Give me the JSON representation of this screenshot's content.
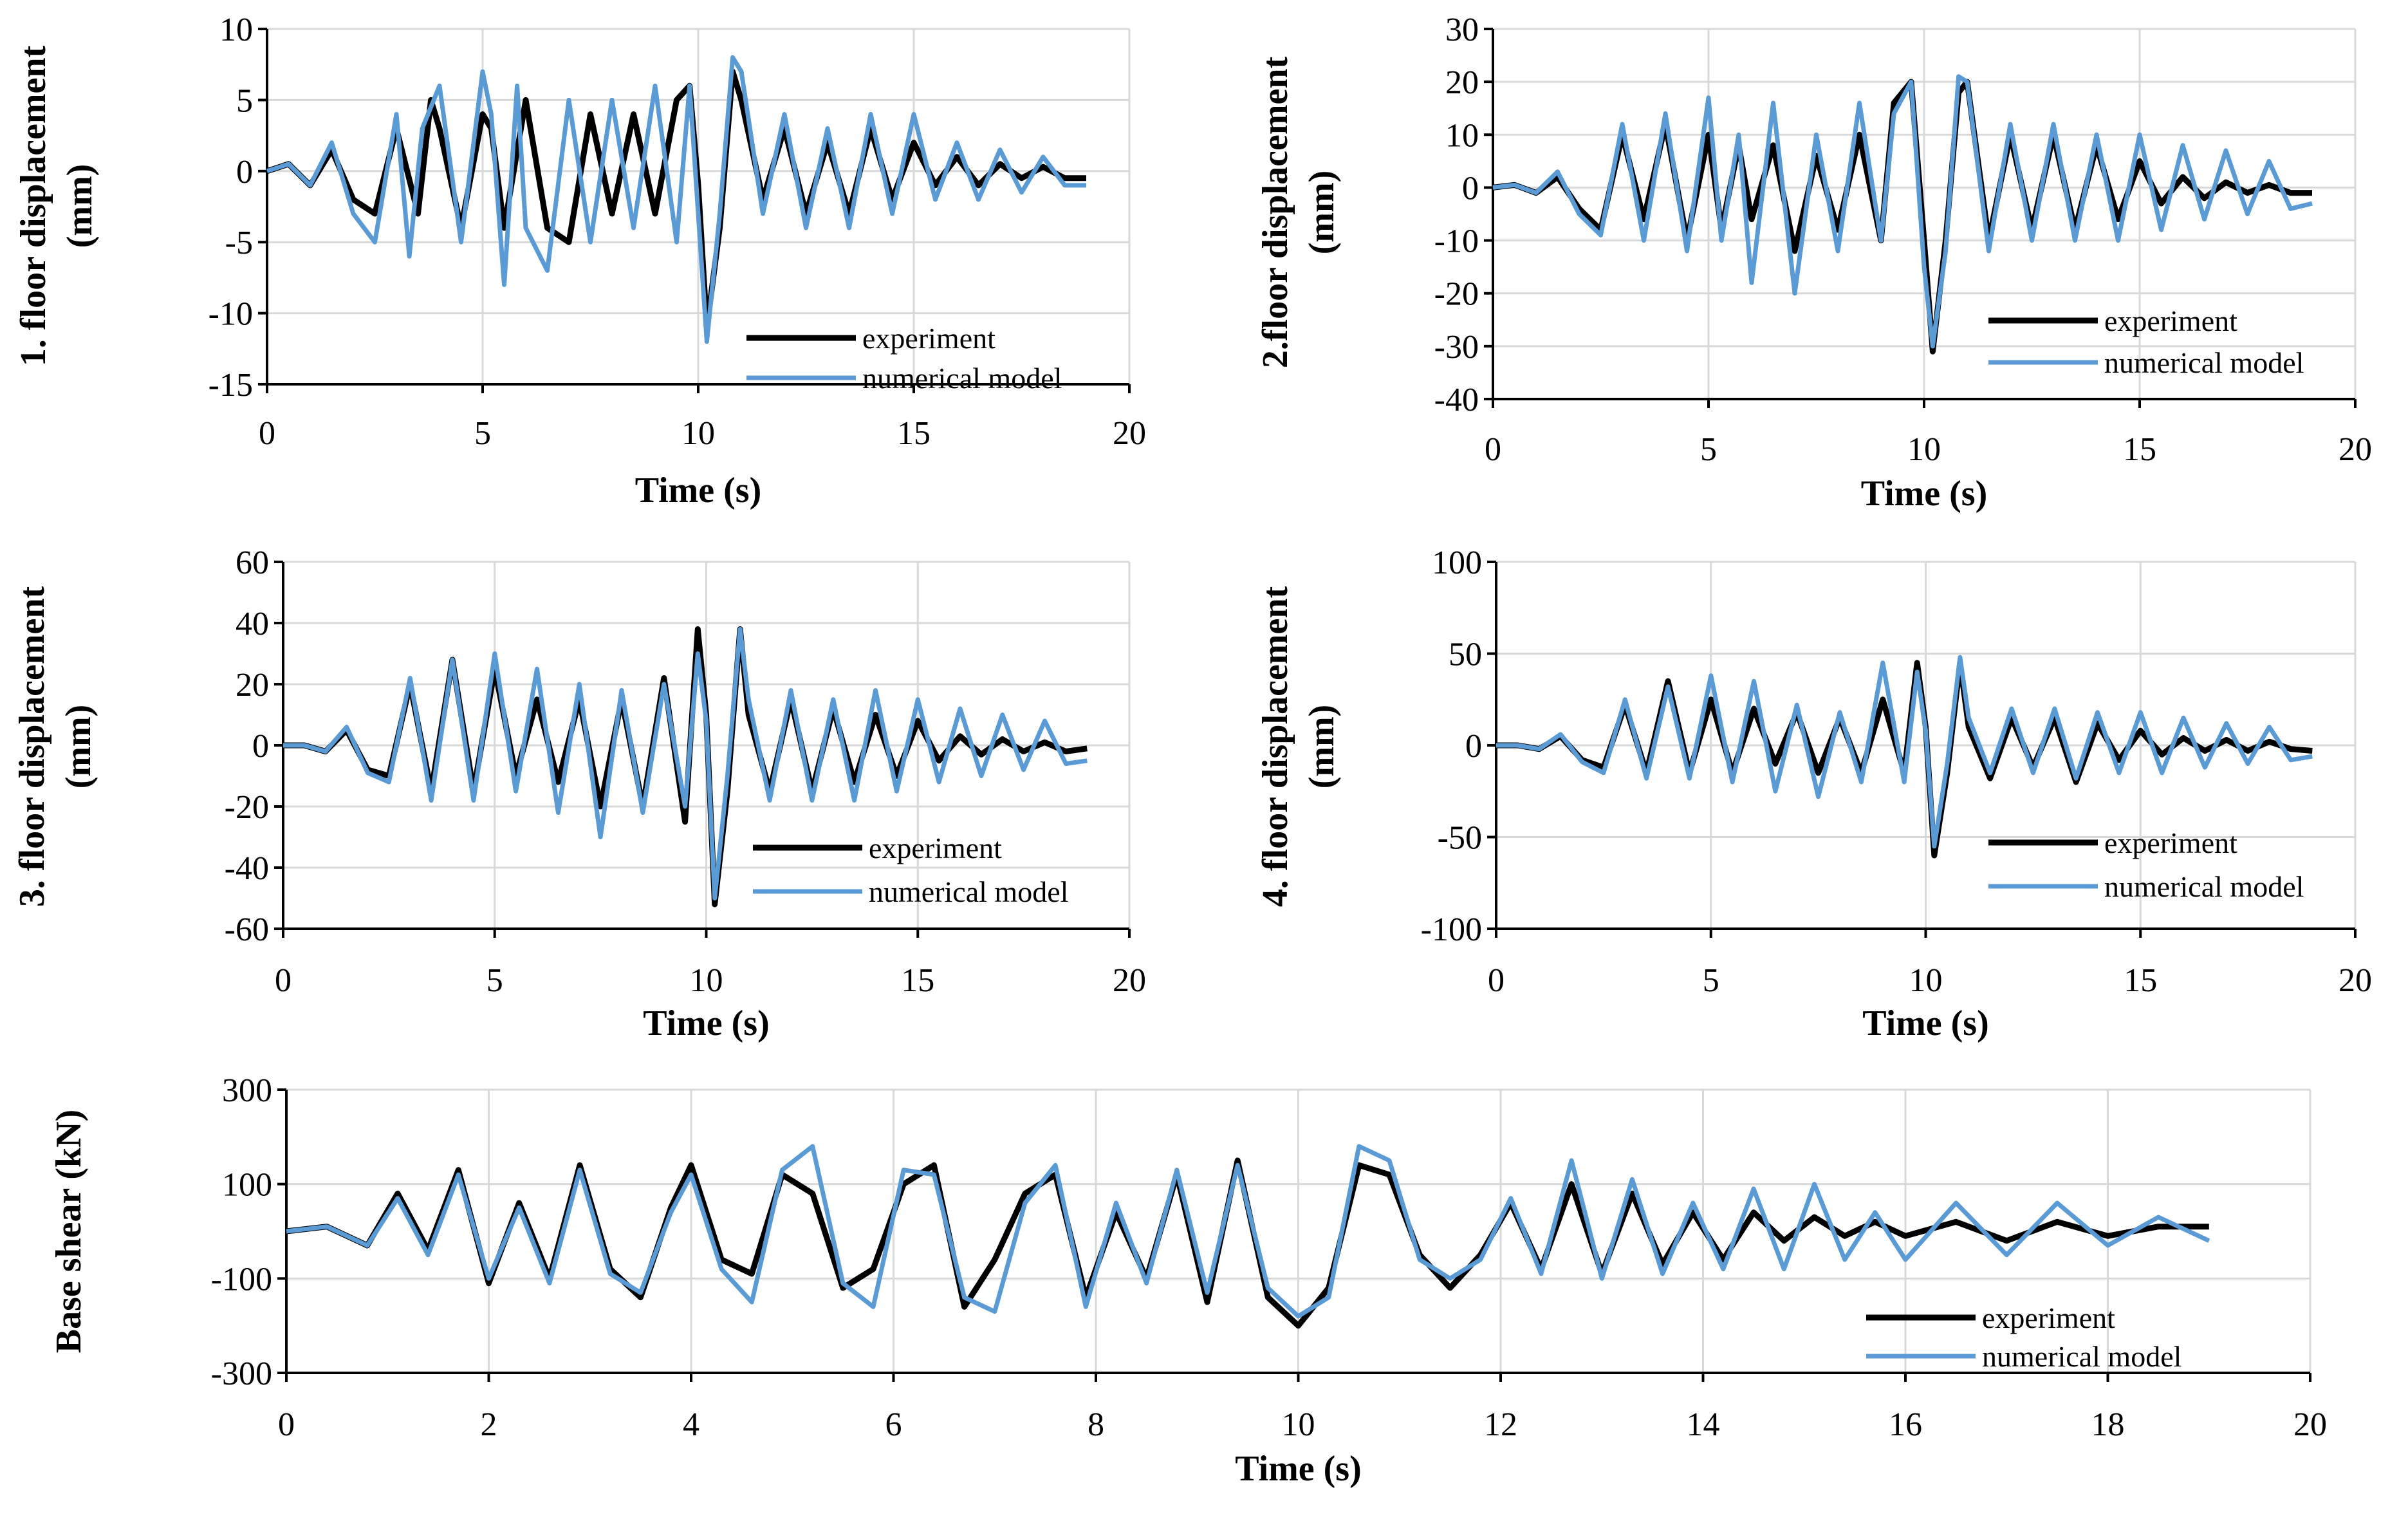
{
  "chart_data": [
    {
      "type": "line",
      "xlabel": "Time (s)",
      "ylabel_lines": [
        "1. floor displacement",
        "(mm)"
      ],
      "xlim": [
        0,
        20
      ],
      "ylim": [
        -15,
        10
      ],
      "xticks": [
        0,
        5,
        10,
        15,
        20
      ],
      "yticks": [
        -15,
        -10,
        -5,
        0,
        5,
        10
      ],
      "grid": true,
      "legend_position": "bottom-right",
      "series": [
        {
          "name": "experiment",
          "color": "#000000",
          "x": [
            0,
            0.5,
            1,
            1.5,
            2,
            2.5,
            3,
            3.5,
            3.8,
            4,
            4.5,
            5,
            5.2,
            5.5,
            6,
            6.5,
            7,
            7.5,
            8,
            8.5,
            9,
            9.5,
            9.8,
            10,
            10.2,
            10.5,
            10.8,
            11,
            11.5,
            12,
            12.5,
            13,
            13.5,
            14,
            14.5,
            15,
            15.5,
            16,
            16.5,
            17,
            17.5,
            18,
            18.5,
            19
          ],
          "values": [
            0,
            0.5,
            -1,
            1.5,
            -2,
            -3,
            3,
            -3,
            5,
            3,
            -4,
            4,
            3,
            -4,
            5,
            -4,
            -5,
            4,
            -3,
            4,
            -3,
            5,
            6,
            -1,
            -11,
            -4,
            7,
            5,
            -2,
            3,
            -3,
            2,
            -3,
            3,
            -2,
            2,
            -1,
            1,
            -1,
            0.5,
            -0.5,
            0.3,
            -0.5,
            -0.5
          ]
        },
        {
          "name": "numerical model",
          "color": "#5b9bd5",
          "x": [
            0,
            0.5,
            1,
            1.5,
            2,
            2.5,
            3,
            3.3,
            3.6,
            4,
            4.5,
            5,
            5.2,
            5.5,
            5.8,
            6,
            6.5,
            7,
            7.5,
            8,
            8.5,
            9,
            9.5,
            9.8,
            10,
            10.2,
            10.5,
            10.8,
            11,
            11.5,
            12,
            12.5,
            13,
            13.5,
            14,
            14.5,
            15,
            15.5,
            16,
            16.5,
            17,
            17.5,
            18,
            18.5,
            19
          ],
          "values": [
            0,
            0.5,
            -1,
            2,
            -3,
            -5,
            4,
            -6,
            3,
            6,
            -5,
            7,
            4,
            -8,
            6,
            -4,
            -7,
            5,
            -5,
            5,
            -4,
            6,
            -5,
            6,
            -3,
            -12,
            -3,
            8,
            7,
            -3,
            4,
            -4,
            3,
            -4,
            4,
            -3,
            4,
            -2,
            2,
            -2,
            1.5,
            -1.5,
            1,
            -1,
            -1
          ]
        }
      ]
    },
    {
      "type": "line",
      "xlabel": "Time (s)",
      "ylabel_lines": [
        "2.floor displacement",
        "(mm)"
      ],
      "xlim": [
        0,
        20
      ],
      "ylim": [
        -40,
        30
      ],
      "xticks": [
        0,
        5,
        10,
        15,
        20
      ],
      "yticks": [
        -40,
        -30,
        -20,
        -10,
        0,
        10,
        20,
        30
      ],
      "grid": true,
      "legend_position": "bottom-right",
      "series": [
        {
          "name": "experiment",
          "color": "#000000",
          "x": [
            0,
            0.5,
            1,
            1.5,
            2,
            2.5,
            3,
            3.5,
            4,
            4.5,
            5,
            5.3,
            5.7,
            6,
            6.5,
            7,
            7.5,
            8,
            8.5,
            9,
            9.3,
            9.7,
            10,
            10.2,
            10.5,
            10.8,
            11,
            11.5,
            12,
            12.5,
            13,
            13.5,
            14,
            14.5,
            15,
            15.5,
            16,
            16.5,
            17,
            17.5,
            18,
            18.5,
            19
          ],
          "values": [
            0,
            0.5,
            -1,
            2,
            -4,
            -8,
            10,
            -6,
            12,
            -10,
            10,
            -8,
            8,
            -6,
            8,
            -12,
            6,
            -8,
            10,
            -10,
            16,
            20,
            -10,
            -31,
            -10,
            18,
            20,
            -10,
            10,
            -8,
            10,
            -8,
            8,
            -6,
            5,
            -3,
            2,
            -2,
            1,
            -1,
            0.5,
            -1,
            -1
          ]
        },
        {
          "name": "numerical model",
          "color": "#5b9bd5",
          "x": [
            0,
            0.5,
            1,
            1.5,
            2,
            2.5,
            3,
            3.5,
            4,
            4.5,
            5,
            5.3,
            5.7,
            6,
            6.5,
            7,
            7.5,
            8,
            8.5,
            9,
            9.3,
            9.7,
            10,
            10.2,
            10.5,
            10.8,
            11,
            11.5,
            12,
            12.5,
            13,
            13.5,
            14,
            14.5,
            15,
            15.5,
            16,
            16.5,
            17,
            17.5,
            18,
            18.5,
            19
          ],
          "values": [
            0,
            0.5,
            -1,
            3,
            -5,
            -9,
            12,
            -10,
            14,
            -12,
            17,
            -10,
            10,
            -18,
            16,
            -20,
            10,
            -12,
            16,
            -10,
            14,
            20,
            -15,
            -30,
            -12,
            21,
            20,
            -12,
            12,
            -10,
            12,
            -10,
            10,
            -10,
            10,
            -8,
            8,
            -6,
            7,
            -5,
            5,
            -4,
            -3
          ]
        }
      ]
    },
    {
      "type": "line",
      "xlabel": "Time (s)",
      "ylabel_lines": [
        "3. floor displacement",
        "(mm)"
      ],
      "xlim": [
        0,
        20
      ],
      "ylim": [
        -60,
        60
      ],
      "xticks": [
        0,
        5,
        10,
        15,
        20
      ],
      "yticks": [
        -60,
        -40,
        -20,
        0,
        20,
        40,
        60
      ],
      "grid": true,
      "legend_position": "bottom-right",
      "series": [
        {
          "name": "experiment",
          "color": "#000000",
          "x": [
            0,
            0.5,
            1,
            1.5,
            2,
            2.5,
            3,
            3.5,
            4,
            4.5,
            5,
            5.5,
            6,
            6.5,
            7,
            7.5,
            8,
            8.5,
            9,
            9.5,
            9.8,
            10,
            10.2,
            10.5,
            10.8,
            11,
            11.5,
            12,
            12.5,
            13,
            13.5,
            14,
            14.5,
            15,
            15.5,
            16,
            16.5,
            17,
            17.5,
            18,
            18.5,
            19
          ],
          "values": [
            0,
            0,
            -2,
            5,
            -8,
            -10,
            20,
            -15,
            28,
            -15,
            25,
            -10,
            15,
            -12,
            15,
            -20,
            15,
            -20,
            22,
            -25,
            38,
            10,
            -52,
            -15,
            38,
            10,
            -15,
            15,
            -15,
            12,
            -12,
            10,
            -10,
            8,
            -5,
            3,
            -3,
            2,
            -2,
            1,
            -2,
            -1
          ]
        },
        {
          "name": "numerical model",
          "color": "#5b9bd5",
          "x": [
            0,
            0.5,
            1,
            1.5,
            2,
            2.5,
            3,
            3.5,
            4,
            4.5,
            5,
            5.5,
            6,
            6.5,
            7,
            7.5,
            8,
            8.5,
            9,
            9.5,
            9.8,
            10,
            10.2,
            10.5,
            10.8,
            11,
            11.5,
            12,
            12.5,
            13,
            13.5,
            14,
            14.5,
            15,
            15.5,
            16,
            16.5,
            17,
            17.5,
            18,
            18.5,
            19
          ],
          "values": [
            0,
            0,
            -2,
            6,
            -9,
            -12,
            22,
            -18,
            28,
            -18,
            30,
            -15,
            25,
            -22,
            20,
            -30,
            18,
            -22,
            20,
            -20,
            30,
            8,
            -50,
            -10,
            38,
            15,
            -18,
            18,
            -18,
            15,
            -18,
            18,
            -15,
            15,
            -12,
            12,
            -10,
            10,
            -8,
            8,
            -6,
            -5
          ]
        }
      ]
    },
    {
      "type": "line",
      "xlabel": "Time (s)",
      "ylabel_lines": [
        "4. floor displacement",
        "(mm)"
      ],
      "xlim": [
        0,
        20
      ],
      "ylim": [
        -100,
        100
      ],
      "xticks": [
        0,
        5,
        10,
        15,
        20
      ],
      "yticks": [
        -100,
        -50,
        0,
        50,
        100
      ],
      "grid": true,
      "legend_position": "bottom-right",
      "series": [
        {
          "name": "experiment",
          "color": "#000000",
          "x": [
            0,
            0.5,
            1,
            1.5,
            2,
            2.5,
            3,
            3.5,
            4,
            4.5,
            5,
            5.5,
            6,
            6.5,
            7,
            7.5,
            8,
            8.5,
            9,
            9.5,
            9.8,
            10,
            10.2,
            10.5,
            10.8,
            11,
            11.5,
            12,
            12.5,
            13,
            13.5,
            14,
            14.5,
            15,
            15.5,
            16,
            16.5,
            17,
            17.5,
            18,
            18.5,
            19
          ],
          "values": [
            0,
            0,
            -2,
            5,
            -8,
            -12,
            22,
            -15,
            35,
            -15,
            25,
            -15,
            20,
            -10,
            18,
            -15,
            15,
            -15,
            25,
            -15,
            45,
            10,
            -60,
            -15,
            45,
            10,
            -18,
            15,
            -12,
            15,
            -20,
            12,
            -8,
            8,
            -5,
            4,
            -3,
            3,
            -3,
            2,
            -2,
            -3
          ]
        },
        {
          "name": "numerical model",
          "color": "#5b9bd5",
          "x": [
            0,
            0.5,
            1,
            1.5,
            2,
            2.5,
            3,
            3.5,
            4,
            4.5,
            5,
            5.5,
            6,
            6.5,
            7,
            7.5,
            8,
            8.5,
            9,
            9.5,
            9.8,
            10,
            10.2,
            10.5,
            10.8,
            11,
            11.5,
            12,
            12.5,
            13,
            13.5,
            14,
            14.5,
            15,
            15.5,
            16,
            16.5,
            17,
            17.5,
            18,
            18.5,
            19
          ],
          "values": [
            0,
            0,
            -2,
            6,
            -9,
            -15,
            25,
            -18,
            32,
            -18,
            38,
            -20,
            35,
            -25,
            22,
            -28,
            18,
            -20,
            45,
            -20,
            40,
            8,
            -55,
            -10,
            48,
            15,
            -15,
            20,
            -15,
            20,
            -18,
            18,
            -15,
            18,
            -15,
            15,
            -12,
            12,
            -10,
            10,
            -8,
            -6
          ]
        }
      ]
    },
    {
      "type": "line",
      "xlabel": "Time (s)",
      "ylabel_lines": [
        "Base shear (kN)"
      ],
      "xlim": [
        0,
        20
      ],
      "ylim": [
        -300,
        300
      ],
      "xticks": [
        0,
        2,
        4,
        6,
        8,
        10,
        12,
        14,
        16,
        18,
        20
      ],
      "yticks": [
        -300,
        -100,
        100,
        300
      ],
      "grid": true,
      "legend_position": "bottom-right",
      "series": [
        {
          "name": "experiment",
          "color": "#000000",
          "x": [
            0,
            0.4,
            0.8,
            1.1,
            1.4,
            1.7,
            2,
            2.3,
            2.6,
            2.9,
            3.2,
            3.5,
            3.8,
            4,
            4.3,
            4.6,
            4.9,
            5.2,
            5.5,
            5.8,
            6.1,
            6.4,
            6.7,
            7,
            7.3,
            7.6,
            7.9,
            8.2,
            8.5,
            8.8,
            9.1,
            9.4,
            9.7,
            10,
            10.3,
            10.6,
            10.9,
            11.2,
            11.5,
            11.8,
            12.1,
            12.4,
            12.7,
            13,
            13.3,
            13.6,
            13.9,
            14.2,
            14.5,
            14.8,
            15.1,
            15.4,
            15.7,
            16,
            16.5,
            17,
            17.5,
            18,
            18.5,
            19
          ],
          "values": [
            0,
            10,
            -30,
            80,
            -40,
            130,
            -110,
            60,
            -100,
            140,
            -80,
            -140,
            50,
            140,
            -60,
            -90,
            120,
            80,
            -120,
            -80,
            100,
            140,
            -160,
            -60,
            80,
            120,
            -140,
            40,
            -100,
            120,
            -150,
            150,
            -140,
            -200,
            -120,
            140,
            120,
            -50,
            -120,
            -50,
            60,
            -80,
            100,
            -90,
            80,
            -70,
            40,
            -60,
            40,
            -20,
            30,
            -10,
            20,
            -10,
            20,
            -20,
            20,
            -10,
            10,
            10
          ]
        },
        {
          "name": "numerical model",
          "color": "#5b9bd5",
          "x": [
            0,
            0.4,
            0.8,
            1.1,
            1.4,
            1.7,
            2,
            2.3,
            2.6,
            2.9,
            3.2,
            3.5,
            3.8,
            4,
            4.3,
            4.6,
            4.9,
            5.2,
            5.5,
            5.8,
            6.1,
            6.4,
            6.7,
            7,
            7.3,
            7.6,
            7.9,
            8.2,
            8.5,
            8.8,
            9.1,
            9.4,
            9.7,
            10,
            10.3,
            10.6,
            10.9,
            11.2,
            11.5,
            11.8,
            12.1,
            12.4,
            12.7,
            13,
            13.3,
            13.6,
            13.9,
            14.2,
            14.5,
            14.8,
            15.1,
            15.4,
            15.7,
            16,
            16.5,
            17,
            17.5,
            18,
            18.5,
            19
          ],
          "values": [
            0,
            10,
            -30,
            70,
            -50,
            120,
            -100,
            50,
            -110,
            130,
            -90,
            -130,
            40,
            120,
            -80,
            -150,
            130,
            180,
            -110,
            -160,
            130,
            120,
            -140,
            -170,
            60,
            140,
            -160,
            60,
            -110,
            130,
            -130,
            140,
            -120,
            -180,
            -140,
            180,
            150,
            -60,
            -100,
            -60,
            70,
            -90,
            150,
            -100,
            110,
            -90,
            60,
            -80,
            90,
            -80,
            100,
            -60,
            40,
            -60,
            60,
            -50,
            60,
            -30,
            30,
            -20
          ]
        }
      ]
    }
  ]
}
